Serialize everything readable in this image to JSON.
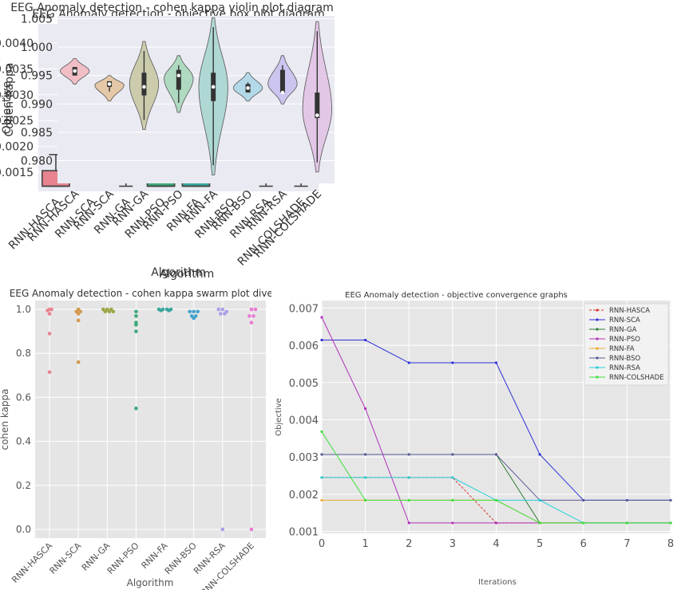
{
  "chart_data": [
    {
      "type": "box",
      "title": "EEG Anomaly detection - objective box plot diagram",
      "xlabel": "Algorithm",
      "ylabel": "Objective",
      "ylim": [
        0.00113,
        0.00437
      ],
      "yticks": [
        0.0015,
        0.002,
        0.0025,
        0.003,
        0.0035,
        0.004
      ],
      "ytick_labels": [
        "0.0015",
        "0.0020",
        "0.0025",
        "0.0030",
        "0.0035",
        "0.0040"
      ],
      "categories": [
        "RNN-HASCA",
        "RNN-SCA",
        "RNN-GA",
        "RNN-PSO",
        "RNN-FA",
        "RNN-BSO",
        "RNN-RSA",
        "RNN-COLSHADE"
      ],
      "colors": [
        "#e8848f",
        "#d4994c",
        "#9ea545",
        "#3ba978",
        "#3aa69d",
        "#44a3cc",
        "#ad9de8",
        "#e87bd4"
      ],
      "boxes": [
        {
          "min": 0.00123,
          "q1": 0.00123,
          "median": 0.00123,
          "q3": 0.00153,
          "max": 0.00184
        },
        {
          "min": 0.00184,
          "q1": 0.00184,
          "median": 0.00184,
          "q3": 0.00215,
          "max": 0.00245
        },
        {
          "min": 0.00123,
          "q1": 0.00153,
          "median": 0.00184,
          "q3": 0.00245,
          "max": 0.00307
        },
        {
          "min": 0.00123,
          "q1": 0.00123,
          "median": 0.00123,
          "q3": 0.00184,
          "max": 0.00245
        },
        {
          "min": 0.00123,
          "q1": 0.00123,
          "median": 0.00123,
          "q3": 0.00276,
          "max": 0.0043
        },
        {
          "min": 0.00184,
          "q1": 0.00215,
          "median": 0.00245,
          "q3": 0.00245,
          "max": 0.00245
        },
        {
          "min": 0.00123,
          "q1": 0.00153,
          "median": 0.00245,
          "q3": 0.00245,
          "max": 0.00245
        },
        {
          "min": 0.00123,
          "q1": 0.00245,
          "median": 0.00368,
          "q3": 0.00399,
          "max": 0.0043
        }
      ]
    },
    {
      "type": "violin",
      "title": "EEG Anomaly detection - cohen kappa violin plot diagram",
      "xlabel": "Algorithm",
      "ylabel": "Cohen Kappa",
      "ylim": [
        0.976,
        1.0055
      ],
      "yticks": [
        0.98,
        0.985,
        0.99,
        0.995,
        1.0,
        1.005
      ],
      "ytick_labels": [
        "0.980",
        "0.985",
        "0.990",
        "0.995",
        "1.000",
        "1.005"
      ],
      "categories": [
        "RNN-HASCA",
        "RNN-SCA",
        "RNN-GA",
        "RNN-PSO",
        "RNN-FA",
        "RNN-BSO",
        "RNN-RSA",
        "RNN-COLSHADE"
      ],
      "colors": [
        "#f2b9c0",
        "#e3c49f",
        "#c9c9a5",
        "#a8d8bb",
        "#a9d6d2",
        "#add7e8",
        "#c8c1ee",
        "#e2c3e6"
      ],
      "violins": [
        {
          "min": 0.9935,
          "max": 0.998,
          "center": 0.9958,
          "q1": 0.995,
          "q3": 0.9965,
          "median": 0.9958
        },
        {
          "min": 0.9905,
          "max": 0.995,
          "center": 0.9933,
          "q1": 0.993,
          "q3": 0.994,
          "median": 0.9935
        },
        {
          "min": 0.9855,
          "max": 1.001,
          "center": 0.9935,
          "q1": 0.9915,
          "q3": 0.9955,
          "median": 0.993
        },
        {
          "min": 0.9885,
          "max": 0.9985,
          "center": 0.9945,
          "q1": 0.9925,
          "q3": 0.996,
          "median": 0.995
        },
        {
          "min": 0.9775,
          "max": 1.0052,
          "center": 0.993,
          "q1": 0.9905,
          "q3": 0.9955,
          "median": 0.993
        },
        {
          "min": 0.9905,
          "max": 0.9955,
          "center": 0.9928,
          "q1": 0.992,
          "q3": 0.9935,
          "median": 0.9928
        },
        {
          "min": 0.99,
          "max": 0.9985,
          "center": 0.9935,
          "q1": 0.992,
          "q3": 0.996,
          "median": 0.992
        },
        {
          "min": 0.978,
          "max": 1.0045,
          "center": 0.989,
          "q1": 0.9875,
          "q3": 0.992,
          "median": 0.988
        }
      ]
    },
    {
      "type": "swarm",
      "title": "EEG Anomaly detection -  cohen kappa swarm plot diversity",
      "xlabel": "Algorithm",
      "ylabel": "cohen kappa",
      "ylim": [
        -0.04,
        1.04
      ],
      "yticks": [
        0.0,
        0.2,
        0.4,
        0.6,
        0.8,
        1.0
      ],
      "ytick_labels": [
        "0.0",
        "0.2",
        "0.4",
        "0.6",
        "0.8",
        "1.0"
      ],
      "categories": [
        "RNN-HASCA",
        "RNN-SCA",
        "RNN-GA",
        "RNN-PSO",
        "RNN-FA",
        "RNN-BSO",
        "RNN-RSA",
        "RNN-COLSHADE"
      ],
      "colors": [
        "#e8848f",
        "#d4994c",
        "#9ea545",
        "#3ba978",
        "#3aa69d",
        "#44a3cc",
        "#ad9de8",
        "#e87bd4"
      ],
      "points": [
        [
          [
            0.0,
            1.0
          ],
          [
            -0.5,
            0.995
          ],
          [
            0.5,
            1.0
          ],
          [
            0.0,
            0.98
          ],
          [
            0.0,
            0.89
          ],
          [
            0.0,
            0.715
          ]
        ],
        [
          [
            0.0,
            1.0
          ],
          [
            -0.5,
            0.99
          ],
          [
            0.5,
            0.99
          ],
          [
            0.0,
            0.98
          ],
          [
            0.0,
            0.95
          ],
          [
            0.0,
            0.76
          ]
        ],
        [
          [
            -1.0,
            1.0
          ],
          [
            0.0,
            1.0
          ],
          [
            1.0,
            1.0
          ],
          [
            -0.5,
            0.99
          ],
          [
            0.5,
            0.99
          ],
          [
            1.5,
            0.99
          ]
        ],
        [
          [
            0.0,
            0.99
          ],
          [
            0.0,
            0.97
          ],
          [
            0.0,
            0.94
          ],
          [
            0.0,
            0.93
          ],
          [
            0.0,
            0.9
          ],
          [
            0.0,
            0.55
          ]
        ],
        [
          [
            -1.5,
            1.0
          ],
          [
            -0.5,
            1.0
          ],
          [
            0.5,
            1.0
          ],
          [
            1.5,
            1.0
          ],
          [
            -1.0,
            0.995
          ],
          [
            1.0,
            0.995
          ]
        ],
        [
          [
            -1.0,
            0.99
          ],
          [
            0.0,
            0.99
          ],
          [
            1.0,
            0.99
          ],
          [
            -0.5,
            0.97
          ],
          [
            0.5,
            0.97
          ],
          [
            0.0,
            0.96
          ]
        ],
        [
          [
            -1.0,
            1.0
          ],
          [
            0.0,
            1.0
          ],
          [
            1.0,
            0.99
          ],
          [
            -0.5,
            0.98
          ],
          [
            0.5,
            0.98
          ],
          [
            0.0,
            0.0
          ]
        ],
        [
          [
            0.0,
            1.0
          ],
          [
            1.0,
            1.0
          ],
          [
            -0.5,
            0.97
          ],
          [
            0.5,
            0.97
          ],
          [
            0.0,
            0.94
          ],
          [
            0.0,
            0.0
          ]
        ]
      ]
    },
    {
      "type": "line",
      "title": "EEG Anomaly detection -  objective convergence graphs",
      "xlabel": "Iterations",
      "ylabel": "Objective",
      "xlim": [
        0,
        8
      ],
      "ylim": [
        0.00095,
        0.0072
      ],
      "x": [
        0,
        1,
        2,
        3,
        4,
        5,
        6,
        7,
        8
      ],
      "xtick_labels": [
        "0",
        "1",
        "2",
        "3",
        "4",
        "5",
        "6",
        "7",
        "8"
      ],
      "yticks": [
        0.001,
        0.002,
        0.003,
        0.004,
        0.005,
        0.006,
        0.007
      ],
      "ytick_labels": [
        "0.001",
        "0.002",
        "0.003",
        "0.004",
        "0.005",
        "0.006",
        "0.007"
      ],
      "series": [
        {
          "name": "RNN-HASCA",
          "color": "#e03030",
          "dash": true,
          "values": [
            0.00245,
            0.00245,
            0.00245,
            0.00245,
            0.00123,
            0.00123,
            0.00123,
            0.00123,
            0.00123
          ]
        },
        {
          "name": "RNN-SCA",
          "color": "#2f2fd8",
          "dash": false,
          "values": [
            0.00614,
            0.00614,
            0.00553,
            0.00553,
            0.00553,
            0.00307,
            0.00184,
            0.00184,
            0.00184
          ]
        },
        {
          "name": "RNN-GA",
          "color": "#2e7d32",
          "dash": false,
          "values": [
            0.00307,
            0.00307,
            0.00307,
            0.00307,
            0.00307,
            0.00123,
            0.00123,
            0.00123,
            0.00123
          ]
        },
        {
          "name": "RNN-PSO",
          "color": "#b031b8",
          "dash": false,
          "values": [
            0.00675,
            0.0043,
            0.00123,
            0.00123,
            0.00123,
            0.00123,
            0.00123,
            0.00123,
            0.00123
          ]
        },
        {
          "name": "RNN-FA",
          "color": "#f0a830",
          "dash": false,
          "values": [
            0.00184,
            0.00184,
            0.00184,
            0.00184,
            0.00184,
            0.00123,
            0.00123,
            0.00123,
            0.00123
          ]
        },
        {
          "name": "RNN-BSO",
          "color": "#5a5a9a",
          "dash": false,
          "values": [
            0.00307,
            0.00307,
            0.00307,
            0.00307,
            0.00307,
            0.00184,
            0.00184,
            0.00184,
            0.00184
          ]
        },
        {
          "name": "RNN-RSA",
          "color": "#22d0d8",
          "dash": false,
          "values": [
            0.00245,
            0.00245,
            0.00245,
            0.00245,
            0.00184,
            0.00184,
            0.00123,
            0.00123,
            0.00123
          ]
        },
        {
          "name": "RNN-COLSHADE",
          "color": "#3ce03c",
          "dash": false,
          "values": [
            0.00368,
            0.00184,
            0.00184,
            0.00184,
            0.00184,
            0.00123,
            0.00123,
            0.00123,
            0.00123
          ]
        }
      ]
    }
  ]
}
